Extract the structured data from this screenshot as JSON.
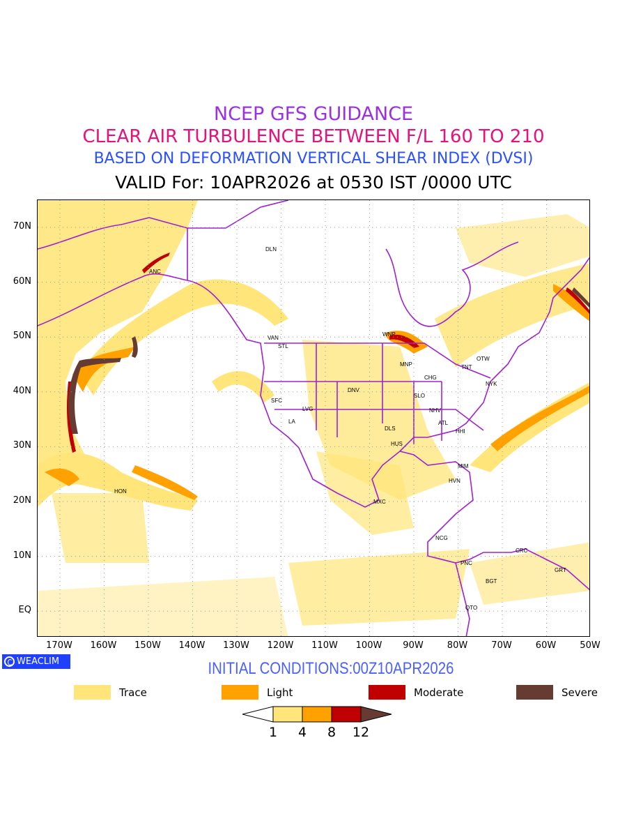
{
  "titles": {
    "line1": "NCEP GFS GUIDANCE",
    "line2": "CLEAR AIR TURBULENCE BETWEEN F/L 160 TO 210",
    "line3": "BASED ON DEFORMATION VERTICAL SHEAR INDEX (DVSI)",
    "line4": "VALID For: 10APR2026 at 0530 IST /0000 UTC"
  },
  "axes": {
    "lat_labels": [
      "70N",
      "60N",
      "50N",
      "40N",
      "30N",
      "20N",
      "10N",
      "EQ"
    ],
    "lon_labels": [
      "170W",
      "160W",
      "150W",
      "140W",
      "130W",
      "120W",
      "110W",
      "100W",
      "90W",
      "80W",
      "70W",
      "60W",
      "50W"
    ]
  },
  "cities": [
    "DLN",
    "ANC",
    "VAN",
    "STL",
    "WNP",
    "MNP",
    "OTW",
    "TNT",
    "CHG",
    "NYK",
    "DNV",
    "SLO",
    "SFC",
    "LVG",
    "LA",
    "NHV",
    "ATL",
    "DLS",
    "HHI",
    "HUS",
    "MIM",
    "HON",
    "HVN",
    "MXC",
    "NCG",
    "CRC",
    "PNC",
    "GRT",
    "BGT",
    "QTO"
  ],
  "logo": "WEACLIM",
  "initial_conditions": "INITIAL CONDITIONS:00Z10APR2026",
  "legend": [
    {
      "label": "Trace",
      "color": "#ffe57a"
    },
    {
      "label": "Light",
      "color": "#ffa200"
    },
    {
      "label": "Moderate",
      "color": "#c00000"
    },
    {
      "label": "Severe",
      "color": "#663b31"
    }
  ],
  "colorbar": {
    "ticks": [
      "1",
      "4",
      "8",
      "12"
    ]
  },
  "colors": {
    "boundaries": "#a020d0",
    "grid": "#999999"
  }
}
